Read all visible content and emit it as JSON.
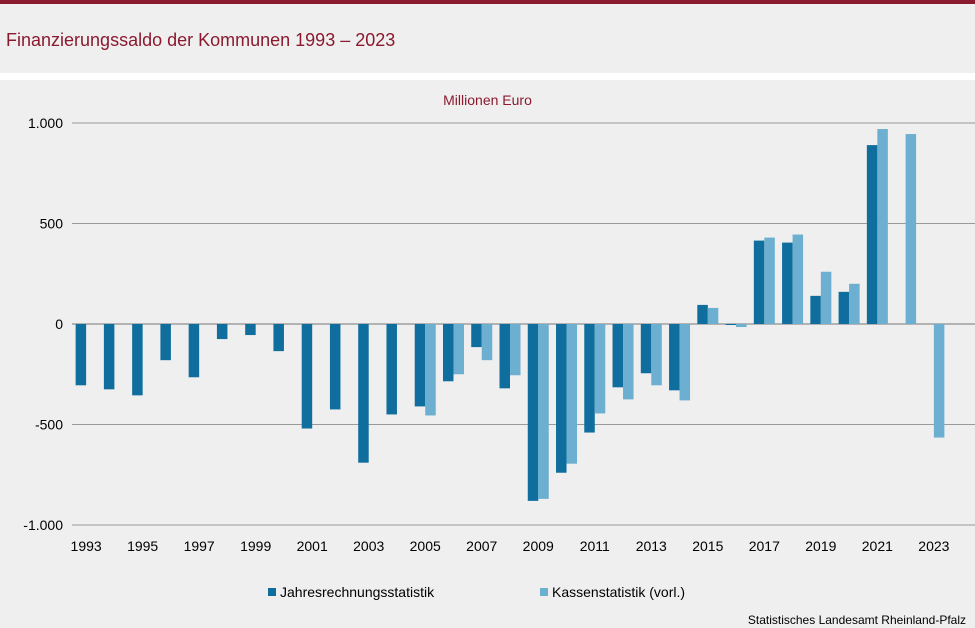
{
  "title": "Finanzierungssaldo der Kommunen 1993 – 2023",
  "source": "Statistisches Landesamt Rheinland-Pfalz",
  "colors": {
    "brand": "#8b1a2f",
    "series1": "#0f6e9d",
    "series2": "#6cafd0"
  },
  "chart_data": {
    "type": "bar",
    "unit_label": "Millionen Euro",
    "categories": [
      "1993",
      "1994",
      "1995",
      "1996",
      "1997",
      "1998",
      "1999",
      "2000",
      "2001",
      "2002",
      "2003",
      "2004",
      "2005",
      "2006",
      "2007",
      "2008",
      "2009",
      "2010",
      "2011",
      "2012",
      "2013",
      "2014",
      "2015",
      "2016",
      "2017",
      "2018",
      "2019",
      "2020",
      "2021",
      "2022",
      "2023"
    ],
    "x_tick_labels": [
      "1993",
      "1995",
      "1997",
      "1999",
      "2001",
      "2003",
      "2005",
      "2007",
      "2009",
      "2011",
      "2013",
      "2015",
      "2017",
      "2019",
      "2021",
      "2023"
    ],
    "y_ticks": [
      1000,
      500,
      0,
      -500,
      -1000
    ],
    "y_tick_labels": [
      "1.000",
      "500",
      "0",
      "-500",
      "-1.000"
    ],
    "ylim": [
      -1000,
      1000
    ],
    "grid": true,
    "legend_position": "bottom",
    "series": [
      {
        "name": "Jahresrechnungsstatistik",
        "values": [
          -305,
          -325,
          -355,
          -180,
          -265,
          -75,
          -55,
          -135,
          -520,
          -425,
          -690,
          -450,
          -410,
          -285,
          -115,
          -320,
          -880,
          -740,
          -540,
          -315,
          -245,
          -330,
          95,
          -5,
          415,
          405,
          140,
          160,
          890,
          null,
          null
        ]
      },
      {
        "name": "Kassenstatistik (vorl.)",
        "values": [
          null,
          null,
          null,
          null,
          null,
          null,
          null,
          null,
          null,
          null,
          null,
          null,
          -455,
          -250,
          -180,
          -255,
          -870,
          -695,
          -445,
          -375,
          -305,
          -380,
          80,
          -15,
          430,
          445,
          260,
          200,
          970,
          945,
          -565
        ]
      }
    ]
  }
}
